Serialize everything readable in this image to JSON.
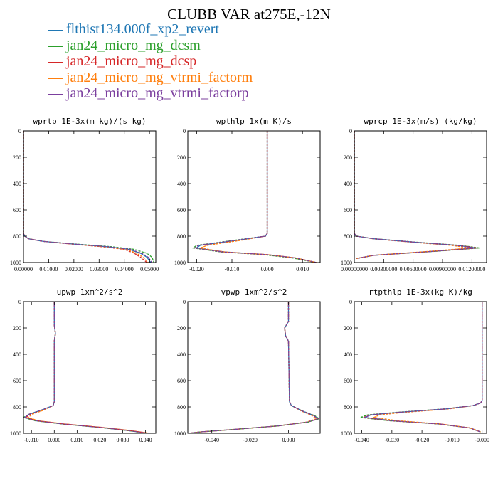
{
  "title": "CLUBB VAR at275E,-12N",
  "legend": [
    {
      "name": "flthist134.000f_xp2_revert",
      "color": "#1f77b4"
    },
    {
      "name": "jan24_micro_mg_dcsm",
      "color": "#2ca02c"
    },
    {
      "name": "jan24_micro_mg_dcsp",
      "color": "#d62728"
    },
    {
      "name": "jan24_micro_mg_vtrmi_factorm",
      "color": "#ff7f0e"
    },
    {
      "name": "jan24_micro_mg_vtrmi_factorp",
      "color": "#7b3f9e"
    }
  ],
  "chart_data": [
    {
      "type": "line",
      "title": "wprtp  1E-3x(m kg)/(s kg)",
      "xlim": [
        0,
        0.0525
      ],
      "ylim": [
        1000,
        0
      ],
      "xticks": [
        0.0,
        0.01,
        0.02,
        0.03,
        0.04,
        0.05
      ],
      "xtick_labels": [
        "0.00000",
        "0.01000",
        "0.02000",
        "0.03000",
        "0.04000",
        "0.05000"
      ],
      "yticks": [
        0,
        200,
        400,
        600,
        800,
        1000
      ],
      "series": [
        {
          "color": "#1f77b4",
          "x": [
            0,
            0,
            0.0005,
            0.002,
            0.008,
            0.02,
            0.033,
            0.042,
            0.0465,
            0.049,
            0.0505
          ],
          "y": [
            0,
            780,
            800,
            820,
            840,
            860,
            880,
            900,
            930,
            960,
            1000
          ]
        },
        {
          "color": "#2ca02c",
          "x": [
            0,
            0,
            0.0005,
            0.002,
            0.008,
            0.021,
            0.035,
            0.044,
            0.049,
            0.051,
            0.0518
          ],
          "y": [
            0,
            780,
            800,
            820,
            840,
            860,
            880,
            900,
            930,
            960,
            1000
          ]
        },
        {
          "color": "#d62728",
          "x": [
            0,
            0,
            0.0005,
            0.002,
            0.008,
            0.019,
            0.031,
            0.04,
            0.044,
            0.0465,
            0.049
          ],
          "y": [
            0,
            780,
            800,
            820,
            840,
            860,
            880,
            900,
            930,
            960,
            1000
          ]
        },
        {
          "color": "#ff7f0e",
          "x": [
            0,
            0,
            0.0005,
            0.002,
            0.008,
            0.0195,
            0.032,
            0.041,
            0.045,
            0.0475,
            0.0495
          ],
          "y": [
            0,
            780,
            800,
            820,
            840,
            860,
            880,
            900,
            930,
            960,
            1000
          ]
        },
        {
          "color": "#7b3f9e",
          "x": [
            0,
            0,
            0.0005,
            0.002,
            0.008,
            0.02,
            0.0335,
            0.0425,
            0.047,
            0.0495,
            0.051
          ],
          "y": [
            0,
            780,
            800,
            820,
            840,
            860,
            880,
            900,
            930,
            960,
            1000
          ]
        }
      ]
    },
    {
      "type": "line",
      "title": "wpthlp  1x(m K)/s",
      "xlim": [
        -0.0225,
        0.015
      ],
      "ylim": [
        1000,
        0
      ],
      "xticks": [
        -0.02,
        -0.01,
        0.0,
        0.01
      ],
      "xtick_labels": [
        "-0.020",
        "-0.010",
        "0.000",
        "0.010"
      ],
      "yticks": [
        0,
        200,
        400,
        600,
        800,
        1000
      ],
      "series": [
        {
          "color": "#1f77b4",
          "x": [
            0.0,
            0.0,
            -0.0005,
            -0.008,
            -0.019,
            -0.02,
            -0.012,
            0.0,
            0.008,
            0.014
          ],
          "y": [
            0,
            780,
            800,
            830,
            870,
            890,
            920,
            940,
            965,
            1000
          ]
        },
        {
          "color": "#2ca02c",
          "x": [
            0.0,
            0.0,
            -0.0005,
            -0.009,
            -0.02,
            -0.021,
            -0.013,
            -0.001,
            0.007,
            0.014
          ],
          "y": [
            0,
            780,
            800,
            830,
            870,
            890,
            920,
            940,
            965,
            1000
          ]
        },
        {
          "color": "#d62728",
          "x": [
            0.0,
            0.0,
            -0.0005,
            -0.008,
            -0.0195,
            -0.0205,
            -0.0125,
            0.0,
            0.008,
            0.014
          ],
          "y": [
            0,
            780,
            800,
            830,
            870,
            890,
            920,
            940,
            965,
            1000
          ]
        },
        {
          "color": "#ff7f0e",
          "x": [
            0.0,
            0.0,
            -0.0005,
            -0.007,
            -0.017,
            -0.019,
            -0.012,
            0.0,
            0.008,
            0.014
          ],
          "y": [
            0,
            780,
            800,
            830,
            870,
            890,
            920,
            940,
            965,
            1000
          ]
        },
        {
          "color": "#7b3f9e",
          "x": [
            0.0,
            0.0,
            -0.0005,
            -0.0085,
            -0.0195,
            -0.0205,
            -0.0125,
            0.0,
            0.008,
            0.014
          ],
          "y": [
            0,
            780,
            800,
            830,
            870,
            890,
            920,
            940,
            965,
            1000
          ]
        }
      ]
    },
    {
      "type": "line",
      "title": "wprcp  1E-3x(m/s) (kg/kg)",
      "xlim": [
        0,
        0.0135
      ],
      "ylim": [
        1000,
        0
      ],
      "xticks": [
        0.0,
        0.003,
        0.006,
        0.009,
        0.012
      ],
      "xtick_labels": [
        "0.00000000",
        "0.00300000",
        "0.00600000",
        "0.00900000",
        "0.01200000"
      ],
      "yticks": [
        0,
        200,
        400,
        600,
        800,
        1000
      ],
      "series": [
        {
          "color": "#1f77b4",
          "x": [
            0,
            0,
            0.0002,
            0.002,
            0.006,
            0.0105,
            0.0125,
            0.008,
            0.002,
            0.0002
          ],
          "y": [
            0,
            780,
            800,
            820,
            845,
            870,
            890,
            915,
            945,
            970
          ]
        },
        {
          "color": "#2ca02c",
          "x": [
            0,
            0,
            0.0002,
            0.0021,
            0.0062,
            0.0108,
            0.0128,
            0.0082,
            0.002,
            0.0002
          ],
          "y": [
            0,
            780,
            800,
            820,
            845,
            870,
            890,
            915,
            945,
            970
          ]
        },
        {
          "color": "#d62728",
          "x": [
            0,
            0,
            0.0002,
            0.002,
            0.006,
            0.0106,
            0.0126,
            0.008,
            0.002,
            0.0002
          ],
          "y": [
            0,
            780,
            800,
            820,
            845,
            870,
            890,
            915,
            945,
            970
          ]
        },
        {
          "color": "#ff7f0e",
          "x": [
            0,
            0,
            0.0002,
            0.0019,
            0.0057,
            0.0099,
            0.0118,
            0.0076,
            0.002,
            0.0002
          ],
          "y": [
            0,
            780,
            800,
            820,
            845,
            870,
            890,
            915,
            945,
            970
          ]
        },
        {
          "color": "#7b3f9e",
          "x": [
            0,
            0,
            0.0002,
            0.002,
            0.006,
            0.0104,
            0.0124,
            0.008,
            0.002,
            0.0002
          ],
          "y": [
            0,
            780,
            800,
            820,
            845,
            870,
            890,
            915,
            945,
            970
          ]
        }
      ]
    },
    {
      "type": "line",
      "title": "upwp  1xm^2/s^2",
      "xlim": [
        -0.0135,
        0.0445
      ],
      "ylim": [
        1000,
        0
      ],
      "xticks": [
        -0.01,
        0.0,
        0.01,
        0.02,
        0.03,
        0.04
      ],
      "xtick_labels": [
        "-0.010",
        "0.000",
        "0.010",
        "0.020",
        "0.030",
        "0.040"
      ],
      "yticks": [
        0,
        200,
        400,
        600,
        800,
        1000
      ],
      "series": [
        {
          "color": "#1f77b4",
          "x": [
            0.0,
            0.0,
            0.0005,
            0.0,
            0.0,
            -0.0005,
            -0.005,
            -0.011,
            -0.013,
            -0.008,
            0.004,
            0.02,
            0.033,
            0.041
          ],
          "y": [
            0,
            180,
            240,
            300,
            760,
            790,
            820,
            855,
            880,
            905,
            930,
            955,
            980,
            1000
          ]
        },
        {
          "color": "#2ca02c",
          "x": [
            0.0,
            0.0,
            0.0005,
            0.0,
            0.0,
            -0.0005,
            -0.005,
            -0.011,
            -0.0135,
            -0.0085,
            0.0035,
            0.0195,
            0.0325,
            0.0405
          ],
          "y": [
            0,
            180,
            240,
            300,
            760,
            790,
            820,
            855,
            880,
            905,
            930,
            955,
            980,
            1000
          ]
        },
        {
          "color": "#d62728",
          "x": [
            0.0,
            0.0,
            0.0005,
            0.0,
            0.0,
            -0.0005,
            -0.0045,
            -0.0105,
            -0.0125,
            -0.0075,
            0.0045,
            0.0205,
            0.0335,
            0.0415
          ],
          "y": [
            0,
            180,
            240,
            300,
            760,
            790,
            820,
            855,
            880,
            905,
            930,
            955,
            980,
            1000
          ]
        },
        {
          "color": "#ff7f0e",
          "x": [
            0.0,
            0.0,
            0.0005,
            0.0,
            0.0,
            -0.0005,
            -0.004,
            -0.0095,
            -0.0115,
            -0.007,
            0.005,
            0.021,
            0.034,
            0.042
          ],
          "y": [
            0,
            180,
            240,
            300,
            760,
            790,
            820,
            855,
            880,
            905,
            930,
            955,
            980,
            1000
          ]
        },
        {
          "color": "#7b3f9e",
          "x": [
            0.0,
            0.0,
            0.0005,
            0.0,
            0.0,
            -0.0005,
            -0.005,
            -0.011,
            -0.013,
            -0.008,
            0.004,
            0.02,
            0.033,
            0.041
          ],
          "y": [
            0,
            180,
            240,
            300,
            760,
            790,
            820,
            855,
            880,
            905,
            930,
            955,
            980,
            1000
          ]
        }
      ]
    },
    {
      "type": "line",
      "title": "vpwp  1xm^2/s^2",
      "xlim": [
        -0.0525,
        0.0165
      ],
      "ylim": [
        1000,
        0
      ],
      "xticks": [
        -0.04,
        -0.02,
        0.0
      ],
      "xtick_labels": [
        "-0.040",
        "-0.020",
        "0.000"
      ],
      "yticks": [
        0,
        200,
        400,
        600,
        800,
        1000
      ],
      "series": [
        {
          "color": "#1f77b4",
          "x": [
            0.0,
            0.0,
            -0.002,
            -0.0015,
            0.0,
            0.0005,
            0.0015,
            0.007,
            0.013,
            0.0155,
            0.01,
            -0.006,
            -0.028,
            -0.046,
            -0.052
          ],
          "y": [
            0,
            150,
            200,
            260,
            300,
            760,
            790,
            830,
            865,
            890,
            915,
            945,
            970,
            990,
            1000
          ]
        },
        {
          "color": "#2ca02c",
          "x": [
            0.0,
            0.0,
            -0.002,
            -0.0015,
            0.0,
            0.0005,
            0.0015,
            0.0072,
            0.0135,
            0.016,
            0.0102,
            -0.006,
            -0.028,
            -0.046,
            -0.052
          ],
          "y": [
            0,
            150,
            200,
            260,
            300,
            760,
            790,
            830,
            865,
            890,
            915,
            945,
            970,
            990,
            1000
          ]
        },
        {
          "color": "#d62728",
          "x": [
            0.0,
            0.0,
            -0.002,
            -0.0015,
            0.0,
            0.0005,
            0.0015,
            0.007,
            0.013,
            0.0155,
            0.01,
            -0.006,
            -0.028,
            -0.046,
            -0.052
          ],
          "y": [
            0,
            150,
            200,
            260,
            300,
            760,
            790,
            830,
            865,
            890,
            915,
            945,
            970,
            990,
            1000
          ]
        },
        {
          "color": "#ff7f0e",
          "x": [
            0.0,
            0.0,
            -0.002,
            -0.0015,
            0.0,
            0.0005,
            0.0015,
            0.0065,
            0.0122,
            0.0145,
            0.0095,
            -0.006,
            -0.028,
            -0.046,
            -0.052
          ],
          "y": [
            0,
            150,
            200,
            260,
            300,
            760,
            790,
            830,
            865,
            890,
            915,
            945,
            970,
            990,
            1000
          ]
        },
        {
          "color": "#7b3f9e",
          "x": [
            0.0,
            0.0,
            -0.002,
            -0.0015,
            0.0,
            0.0005,
            0.0015,
            0.007,
            0.013,
            0.0155,
            0.01,
            -0.006,
            -0.028,
            -0.046,
            -0.052
          ],
          "y": [
            0,
            150,
            200,
            260,
            300,
            760,
            790,
            830,
            865,
            890,
            915,
            945,
            970,
            990,
            1000
          ]
        }
      ]
    },
    {
      "type": "line",
      "title": "rtpthlp  1E-3x(kg K)/kg",
      "xlim": [
        -0.0425,
        0.0015
      ],
      "ylim": [
        1000,
        0
      ],
      "xticks": [
        -0.04,
        -0.03,
        -0.02,
        -0.01,
        0.0
      ],
      "xtick_labels": [
        "-0.040",
        "-0.030",
        "-0.020",
        "-0.010",
        "-0.000"
      ],
      "yticks": [
        0,
        200,
        400,
        600,
        800,
        1000
      ],
      "series": [
        {
          "color": "#1f77b4",
          "x": [
            0.0,
            0.0,
            -0.0005,
            -0.003,
            -0.012,
            -0.027,
            -0.037,
            -0.039,
            -0.03,
            -0.014,
            -0.004,
            -0.0005
          ],
          "y": [
            0,
            750,
            770,
            790,
            815,
            840,
            860,
            880,
            905,
            930,
            960,
            990
          ]
        },
        {
          "color": "#2ca02c",
          "x": [
            0.0,
            0.0,
            -0.0005,
            -0.003,
            -0.0125,
            -0.028,
            -0.038,
            -0.0405,
            -0.031,
            -0.0145,
            -0.004,
            -0.0005
          ],
          "y": [
            0,
            750,
            770,
            790,
            815,
            840,
            860,
            880,
            905,
            930,
            960,
            990
          ]
        },
        {
          "color": "#d62728",
          "x": [
            0.0,
            0.0,
            -0.0005,
            -0.003,
            -0.012,
            -0.027,
            -0.037,
            -0.0395,
            -0.0305,
            -0.014,
            -0.004,
            -0.0005
          ],
          "y": [
            0,
            750,
            770,
            790,
            815,
            840,
            860,
            880,
            905,
            930,
            960,
            990
          ]
        },
        {
          "color": "#ff7f0e",
          "x": [
            0.0,
            0.0,
            -0.0005,
            -0.0028,
            -0.011,
            -0.025,
            -0.034,
            -0.036,
            -0.028,
            -0.0135,
            -0.004,
            -0.0005
          ],
          "y": [
            0,
            750,
            770,
            790,
            815,
            840,
            860,
            880,
            905,
            930,
            960,
            990
          ]
        },
        {
          "color": "#7b3f9e",
          "x": [
            0.0,
            0.0,
            -0.0005,
            -0.003,
            -0.012,
            -0.027,
            -0.037,
            -0.039,
            -0.03,
            -0.014,
            -0.004,
            -0.0005
          ],
          "y": [
            0,
            750,
            770,
            790,
            815,
            840,
            860,
            880,
            905,
            930,
            960,
            990
          ]
        }
      ]
    }
  ]
}
